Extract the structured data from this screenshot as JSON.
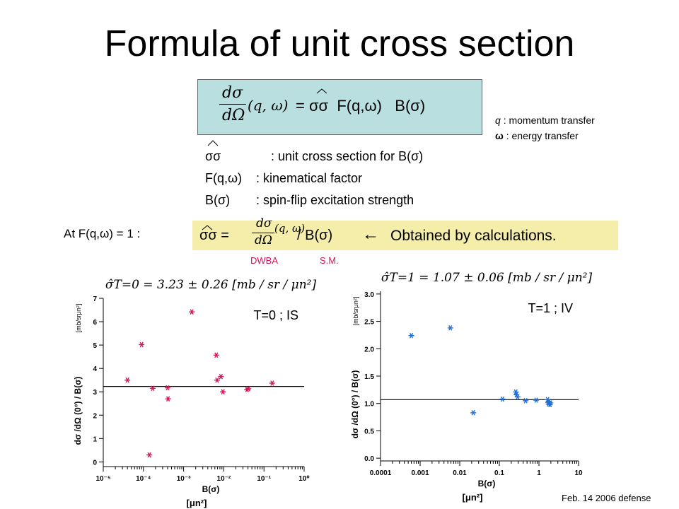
{
  "slide": {
    "title": "Formula of unit cross section",
    "main_formula": {
      "lhs_top": "dσ",
      "lhs_bottom": "dΩ",
      "lhs_args": "(q, ω)",
      "rhs": "= σσ  F(q,ω)   B(σ)"
    },
    "legend": {
      "q_symbol": "q",
      "q_desc": ": momentum transfer",
      "omega_symbol": "ω",
      "omega_desc": ": energy transfer"
    },
    "definitions": [
      {
        "symbol": "σσ",
        "desc": ": unit cross section for B(σ)"
      },
      {
        "symbol": "F(q,ω)",
        "desc": ": kinematical factor"
      },
      {
        "symbol": "B(σ)",
        "desc": ": spin-flip excitation strength"
      }
    ],
    "condition": "At  F(q,ω) = 1 :",
    "obtained": {
      "lhs": "σσ =",
      "frac_top": "dσ",
      "frac_bottom": "dΩ",
      "frac_args": "(q, ω)",
      "rhs": "/ B(σ)",
      "arrow": "←",
      "text": "Obtained by calculations."
    },
    "labels": {
      "dwba": "DWBA",
      "sm": "S.M."
    },
    "footer": "Feb. 14 2006 defense",
    "colors": {
      "box_formula": "#b9dfe0",
      "box_obtained": "#f5eeaa",
      "pink": "#d4145a",
      "is_marker": "#d4145a",
      "iv_marker": "#1f6fd1"
    }
  },
  "chart_data": [
    {
      "type": "scatter",
      "panel_label": "T=0 ; IS",
      "formula": "σ̂T=0 = 3.23 ± 0.26 [mb / sr / μn²]",
      "ylabel": "dσ /dΩ (0°) / B(σ)",
      "ylabel_unit": "[mb/srμn²]",
      "xlabel": "B(σ)",
      "xlabel_unit": "[μn²]",
      "xscale": "log",
      "xlim": [
        1e-05,
        1
      ],
      "ylim": [
        -0.2,
        7
      ],
      "yticks": [
        "0",
        "1",
        "2",
        "3",
        "4",
        "5",
        "6",
        "7"
      ],
      "xticks": [
        "10⁻⁵",
        "10⁻⁴",
        "10⁻³",
        "10⁻²",
        "10⁻¹",
        "10⁰"
      ],
      "hline": 3.23,
      "points": [
        {
          "x": 4e-05,
          "y": 3.5
        },
        {
          "x": 9e-05,
          "y": 5.02
        },
        {
          "x": 0.00014,
          "y": 0.3
        },
        {
          "x": 0.00017,
          "y": 3.15
        },
        {
          "x": 0.0004,
          "y": 3.17
        },
        {
          "x": 0.00041,
          "y": 2.7
        },
        {
          "x": 0.0016,
          "y": 6.42
        },
        {
          "x": 0.0065,
          "y": 4.57
        },
        {
          "x": 0.0068,
          "y": 3.5
        },
        {
          "x": 0.0085,
          "y": 3.65
        },
        {
          "x": 0.0095,
          "y": 3.0
        },
        {
          "x": 0.038,
          "y": 3.1
        },
        {
          "x": 0.041,
          "y": 3.13
        },
        {
          "x": 0.16,
          "y": 3.37
        }
      ]
    },
    {
      "type": "scatter",
      "panel_label": "T=1 ; IV",
      "formula": "σ̂T=1 = 1.07 ± 0.06 [mb / sr / μn²]",
      "ylabel": "dσ /dΩ (0°) / B(σ)",
      "ylabel_unit": "[mb/srμn²]",
      "xlabel": "B(σ)",
      "xlabel_unit": "[μn²]",
      "xscale": "log",
      "xlim": [
        0.0001,
        10
      ],
      "ylim": [
        -0.05,
        3.05
      ],
      "yticks": [
        "0.0",
        "0.5",
        "1.0",
        "1.5",
        "2.0",
        "2.5",
        "3.0"
      ],
      "xticks": [
        "0.0001",
        "0.001",
        "0.01",
        "0.1",
        "1",
        "10"
      ],
      "hline": 1.07,
      "points": [
        {
          "x": 0.0006,
          "y": 2.24
        },
        {
          "x": 0.0058,
          "y": 2.38
        },
        {
          "x": 0.022,
          "y": 0.83
        },
        {
          "x": 0.12,
          "y": 1.08
        },
        {
          "x": 0.26,
          "y": 1.21
        },
        {
          "x": 0.27,
          "y": 1.16
        },
        {
          "x": 0.29,
          "y": 1.12
        },
        {
          "x": 0.46,
          "y": 1.05
        },
        {
          "x": 0.85,
          "y": 1.06
        },
        {
          "x": 1.65,
          "y": 1.07
        },
        {
          "x": 1.7,
          "y": 1.02
        },
        {
          "x": 1.75,
          "y": 0.99
        },
        {
          "x": 1.8,
          "y": 1.04
        },
        {
          "x": 1.9,
          "y": 0.98
        },
        {
          "x": 1.95,
          "y": 1.01
        }
      ]
    }
  ]
}
